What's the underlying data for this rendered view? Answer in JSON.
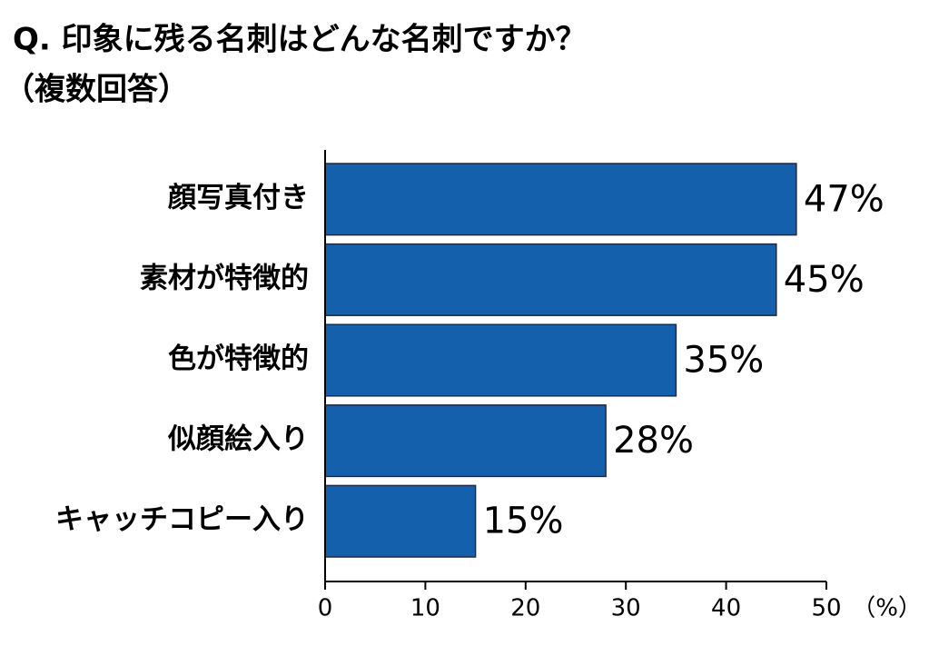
{
  "chart_data": {
    "type": "bar",
    "orientation": "horizontal",
    "title": "Q. 印象に残る名刺はどんな名刺ですか？",
    "subtitle": "（複数回答）",
    "x_axis_label": "（%）",
    "categories": [
      "顔写真付き",
      "素材が特徴的",
      "色が特徴的",
      "似顔絵入り",
      "キャッチコピー入り"
    ],
    "values": [
      47,
      45,
      35,
      28,
      15
    ],
    "value_labels": [
      "47%",
      "45%",
      "35%",
      "28%",
      "15%"
    ],
    "color": "#1560ad",
    "xlim": [
      0,
      50
    ],
    "xticks": [
      0,
      10,
      20,
      30,
      40,
      50
    ]
  }
}
